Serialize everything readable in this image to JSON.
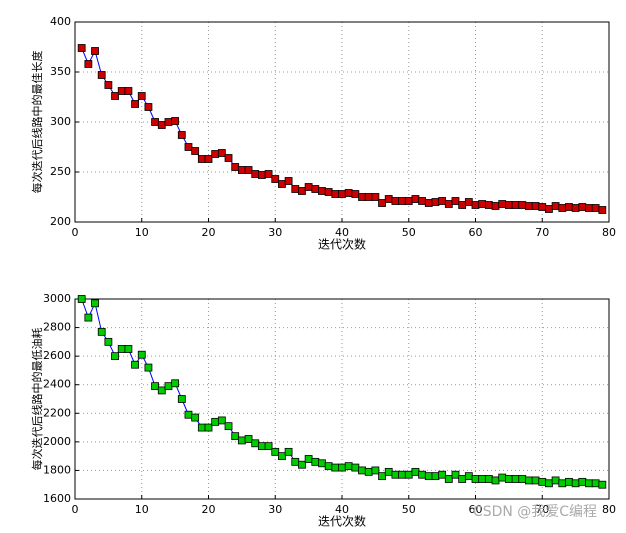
{
  "chart_data": [
    {
      "type": "line",
      "xlabel": "迭代次数",
      "ylabel": "每次迭代后线路中的最佳长度",
      "x": [
        1,
        2,
        3,
        4,
        5,
        6,
        7,
        8,
        9,
        10,
        11,
        12,
        13,
        14,
        15,
        16,
        17,
        18,
        19,
        20,
        21,
        22,
        23,
        24,
        25,
        26,
        27,
        28,
        29,
        30,
        31,
        32,
        33,
        34,
        35,
        36,
        37,
        38,
        39,
        40,
        41,
        42,
        43,
        44,
        45,
        46,
        47,
        48,
        49,
        50,
        51,
        52,
        53,
        54,
        55,
        56,
        57,
        58,
        59,
        60,
        61,
        62,
        63,
        64,
        65,
        66,
        67,
        68,
        69,
        70,
        71,
        72,
        73,
        74,
        75,
        76,
        77,
        78,
        79
      ],
      "series": [
        {
          "color": "#0000ff",
          "marker_color": "#cc0000",
          "values": [
            374,
            358,
            371,
            347,
            337,
            326,
            331,
            331,
            318,
            326,
            315,
            300,
            297,
            300,
            301,
            287,
            275,
            271,
            263,
            263,
            268,
            269,
            264,
            255,
            252,
            252,
            248,
            247,
            248,
            243,
            238,
            241,
            233,
            231,
            235,
            233,
            231,
            230,
            228,
            228,
            229,
            228,
            225,
            225,
            225,
            219,
            223,
            221,
            221,
            221,
            223,
            221,
            219,
            220,
            221,
            218,
            221,
            217,
            220,
            217,
            218,
            217,
            216,
            218,
            217,
            217,
            217,
            216,
            216,
            215,
            213,
            216,
            214,
            215,
            214,
            215,
            214,
            214,
            212
          ]
        }
      ],
      "xlim": [
        0,
        80
      ],
      "xticks": [
        0,
        10,
        20,
        30,
        40,
        50,
        60,
        70,
        80
      ],
      "ylim": [
        200,
        400
      ],
      "yticks": [
        200,
        250,
        300,
        350,
        400
      ],
      "grid": true
    },
    {
      "type": "line",
      "xlabel": "迭代次数",
      "ylabel": "每次迭代后线路中的最低油耗",
      "x": [
        1,
        2,
        3,
        4,
        5,
        6,
        7,
        8,
        9,
        10,
        11,
        12,
        13,
        14,
        15,
        16,
        17,
        18,
        19,
        20,
        21,
        22,
        23,
        24,
        25,
        26,
        27,
        28,
        29,
        30,
        31,
        32,
        33,
        34,
        35,
        36,
        37,
        38,
        39,
        40,
        41,
        42,
        43,
        44,
        45,
        46,
        47,
        48,
        49,
        50,
        51,
        52,
        53,
        54,
        55,
        56,
        57,
        58,
        59,
        60,
        61,
        62,
        63,
        64,
        65,
        66,
        67,
        68,
        69,
        70,
        71,
        72,
        73,
        74,
        75,
        76,
        77,
        78,
        79
      ],
      "series": [
        {
          "color": "#0000ff",
          "marker_color": "#00cc00",
          "values": [
            3000,
            2870,
            2970,
            2770,
            2700,
            2600,
            2650,
            2650,
            2540,
            2610,
            2520,
            2390,
            2360,
            2390,
            2410,
            2300,
            2190,
            2170,
            2100,
            2100,
            2140,
            2150,
            2110,
            2040,
            2010,
            2020,
            1990,
            1970,
            1970,
            1930,
            1900,
            1930,
            1860,
            1840,
            1880,
            1860,
            1850,
            1830,
            1820,
            1820,
            1830,
            1820,
            1800,
            1790,
            1800,
            1760,
            1790,
            1770,
            1770,
            1770,
            1790,
            1770,
            1760,
            1760,
            1770,
            1740,
            1770,
            1740,
            1760,
            1740,
            1740,
            1740,
            1730,
            1750,
            1740,
            1740,
            1740,
            1730,
            1730,
            1720,
            1710,
            1730,
            1710,
            1720,
            1710,
            1720,
            1710,
            1710,
            1700
          ]
        }
      ],
      "xlim": [
        0,
        80
      ],
      "xticks": [
        0,
        10,
        20,
        30,
        40,
        50,
        60,
        70,
        80
      ],
      "ylim": [
        1600,
        3000
      ],
      "yticks": [
        1600,
        1800,
        2000,
        2200,
        2400,
        2600,
        2800,
        3000
      ],
      "grid": true
    }
  ],
  "watermark": "CSDN @我爱C编程"
}
